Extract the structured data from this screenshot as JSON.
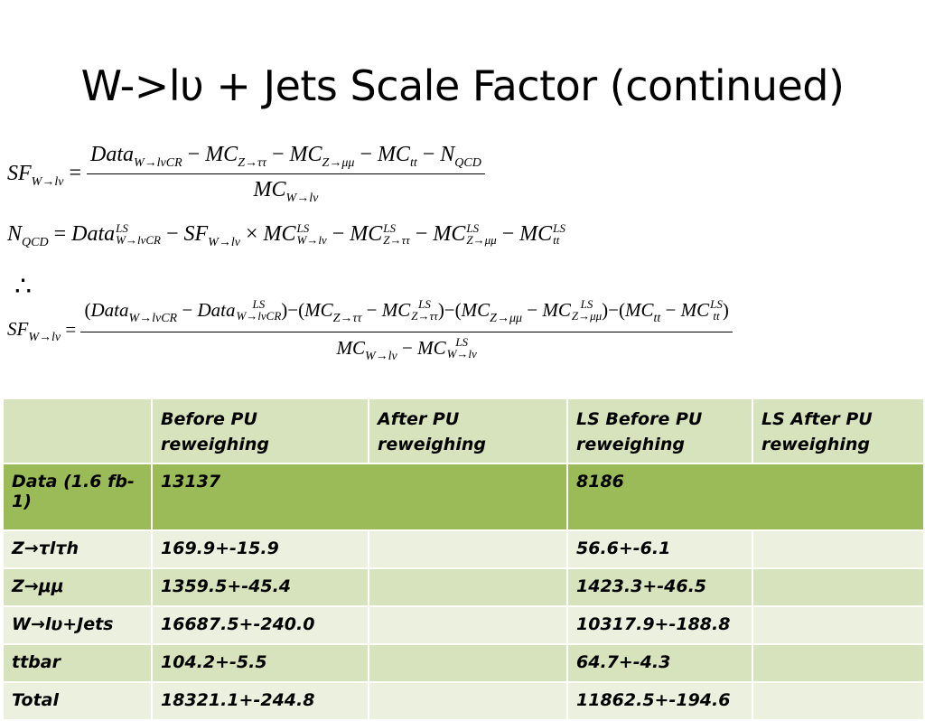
{
  "slide": {
    "title": "W->lυ + Jets Scale Factor (continued)"
  },
  "equations": {
    "eq1_lhs": "SF",
    "eq1_lhs_sub": "W→lν",
    "eq1_numerator": "Data_{W→lνCR} − MC_{Z→ττ} − MC_{Z→μμ} − MC_{tt} − N_{QCD}",
    "eq1_denominator": "MC_{W→lν}",
    "eq2": "N_{QCD} = Data^{LS}_{W→lνCR} − SF_{W→lν} × MC^{LS}_{W→lν} − MC^{LS}_{Z→ττ} − MC^{LS}_{Z→μμ} − MC^{LS}_{tt}",
    "therefore": "∴",
    "eq3_numerator": "(Data_{W→lνCR} − Data^{LS}_{W→lνCR}) − (MC_{Z→ττ} − MC^{LS}_{Z→ττ}) − (MC_{Z→μμ} − MC^{LS}_{Z→μμ}) − (MC_{tt} − MC^{LS}_{tt})",
    "eq3_denominator": "MC_{W→lν} − MC^{LS}_{W→lν}"
  },
  "table": {
    "headers": [
      "",
      "Before PU reweighing",
      "After PU reweighing",
      "LS Before PU reweighing",
      "LS After PU reweighing"
    ],
    "rows": [
      {
        "label": "Data (1.6 fb-1)",
        "before": "13137",
        "after": "",
        "ls_before": "8186",
        "ls_after": ""
      },
      {
        "label": "Z→τlτh",
        "before": "169.9+-15.9",
        "after": "",
        "ls_before": "56.6+-6.1",
        "ls_after": ""
      },
      {
        "label": "Z→μμ",
        "before": "1359.5+-45.4",
        "after": "",
        "ls_before": "1423.3+-46.5",
        "ls_after": ""
      },
      {
        "label": "W→lυ+Jets",
        "before": "16687.5+-240.0",
        "after": "",
        "ls_before": "10317.9+-188.8",
        "ls_after": ""
      },
      {
        "label": "ttbar",
        "before": "104.2+-5.5",
        "after": "",
        "ls_before": "64.7+-4.3",
        "ls_after": ""
      },
      {
        "label": "Total",
        "before": "18321.1+-244.8",
        "after": "",
        "ls_before": "11862.5+-194.6",
        "ls_after": ""
      }
    ]
  },
  "colors": {
    "header_row": "#d6e3bc",
    "data_row": "#9bbb59",
    "row_light": "#ebf1de",
    "row_mid": "#d6e3bc"
  }
}
